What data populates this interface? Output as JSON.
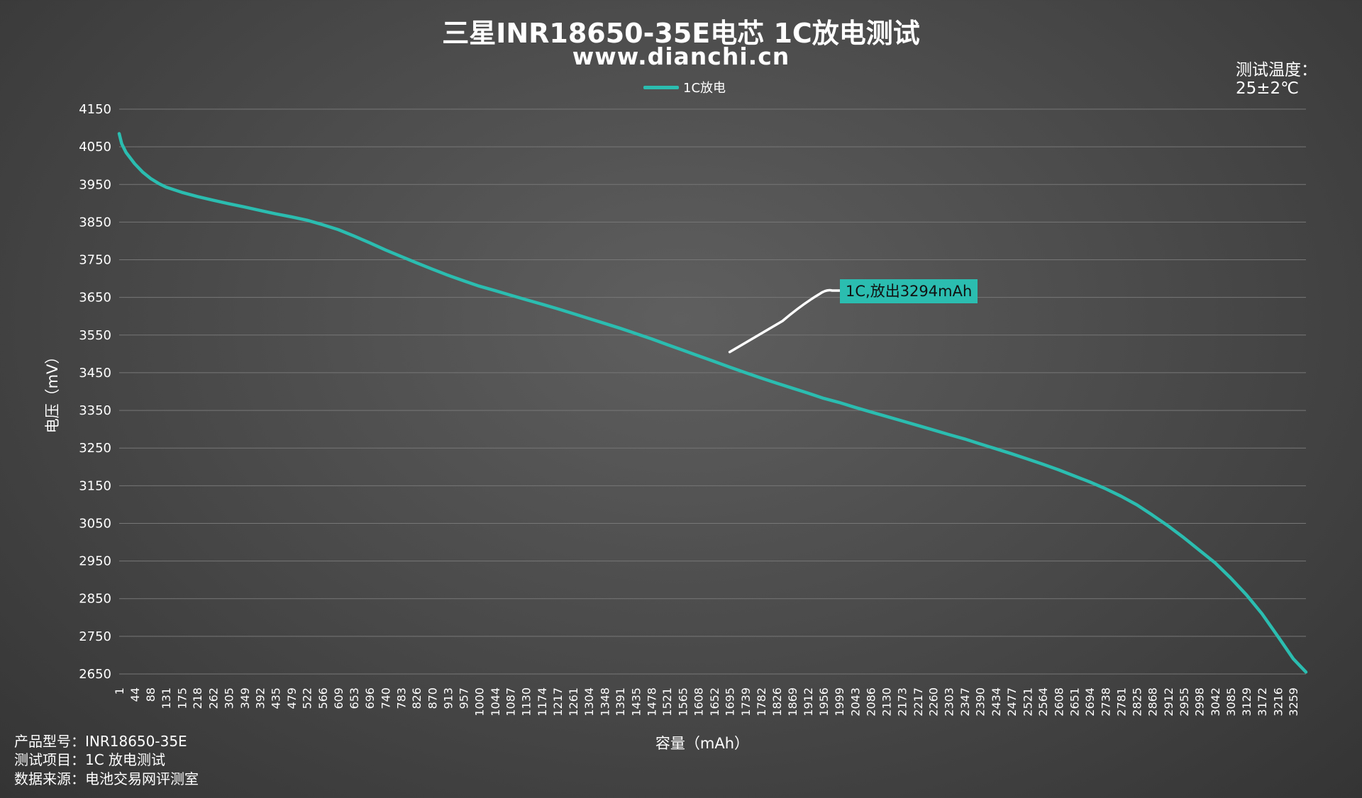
{
  "header": {
    "title": "三星INR18650-35E电芯 1C放电测试",
    "subtitle": "www.dianchi.cn"
  },
  "temperature": {
    "label": "测试温度：",
    "value": "25±2℃"
  },
  "meta": {
    "model": "产品型号：INR18650-35E",
    "item": "测试项目：1C 放电测试",
    "source": "数据来源：电池交易网评测室"
  },
  "colors": {
    "series": "#2bbdb0",
    "grid": "#777777",
    "annotation_bg": "#2bbdb0",
    "leader": "#ffffff"
  },
  "chart_data": {
    "type": "line",
    "title": "三星INR18650-35E电芯 1C放电测试",
    "subtitle": "www.dianchi.cn",
    "xlabel": "容量（mAh）",
    "ylabel": "电压（mV）",
    "legend": {
      "position": "top-center",
      "entries": [
        "1C放电"
      ]
    },
    "grid": {
      "horizontal": true,
      "vertical": false
    },
    "ylim": [
      2650,
      4150
    ],
    "xlim": [
      1,
      3294
    ],
    "yticks": [
      4150,
      4050,
      3950,
      3850,
      3750,
      3650,
      3550,
      3450,
      3350,
      3250,
      3150,
      3050,
      2950,
      2850,
      2750,
      2650
    ],
    "xticks": [
      1,
      44,
      88,
      131,
      175,
      218,
      262,
      305,
      349,
      392,
      435,
      479,
      522,
      566,
      609,
      653,
      696,
      740,
      783,
      826,
      870,
      913,
      957,
      1000,
      1044,
      1087,
      1130,
      1174,
      1217,
      1261,
      1304,
      1348,
      1391,
      1435,
      1478,
      1521,
      1565,
      1608,
      1652,
      1695,
      1739,
      1782,
      1826,
      1869,
      1912,
      1956,
      1999,
      2043,
      2086,
      2130,
      2173,
      2217,
      2260,
      2303,
      2347,
      2390,
      2434,
      2477,
      2521,
      2564,
      2608,
      2651,
      2694,
      2738,
      2781,
      2825,
      2868,
      2912,
      2955,
      2998,
      3042,
      3085,
      3129,
      3172,
      3216,
      3259
    ],
    "series": [
      {
        "name": "1C放电",
        "x": [
          1,
          8,
          20,
          44,
          66,
          88,
          110,
          131,
          175,
          218,
          262,
          305,
          349,
          392,
          435,
          479,
          522,
          566,
          609,
          653,
          696,
          740,
          783,
          826,
          870,
          913,
          957,
          1000,
          1044,
          1087,
          1130,
          1174,
          1217,
          1261,
          1304,
          1348,
          1391,
          1435,
          1478,
          1521,
          1565,
          1608,
          1652,
          1695,
          1739,
          1782,
          1826,
          1869,
          1912,
          1956,
          1999,
          2043,
          2086,
          2130,
          2173,
          2217,
          2260,
          2303,
          2347,
          2390,
          2434,
          2477,
          2521,
          2564,
          2608,
          2651,
          2694,
          2738,
          2781,
          2825,
          2868,
          2912,
          2955,
          2998,
          3042,
          3085,
          3129,
          3172,
          3216,
          3259,
          3294
        ],
        "values": [
          4085,
          4058,
          4035,
          4005,
          3983,
          3966,
          3953,
          3943,
          3929,
          3918,
          3908,
          3899,
          3890,
          3881,
          3872,
          3864,
          3855,
          3843,
          3830,
          3813,
          3795,
          3776,
          3759,
          3742,
          3725,
          3709,
          3694,
          3680,
          3668,
          3656,
          3644,
          3632,
          3620,
          3607,
          3594,
          3581,
          3568,
          3554,
          3540,
          3525,
          3510,
          3495,
          3480,
          3465,
          3450,
          3436,
          3422,
          3409,
          3396,
          3382,
          3371,
          3358,
          3346,
          3334,
          3322,
          3310,
          3298,
          3286,
          3274,
          3261,
          3248,
          3235,
          3221,
          3207,
          3192,
          3176,
          3160,
          3142,
          3122,
          3099,
          3072,
          3043,
          3012,
          2979,
          2945,
          2905,
          2860,
          2810,
          2750,
          2690,
          2655
        ]
      }
    ],
    "annotations": [
      {
        "text": "1C,放出3294mAh",
        "point_x": 1695,
        "point_y": 3505
      }
    ]
  }
}
